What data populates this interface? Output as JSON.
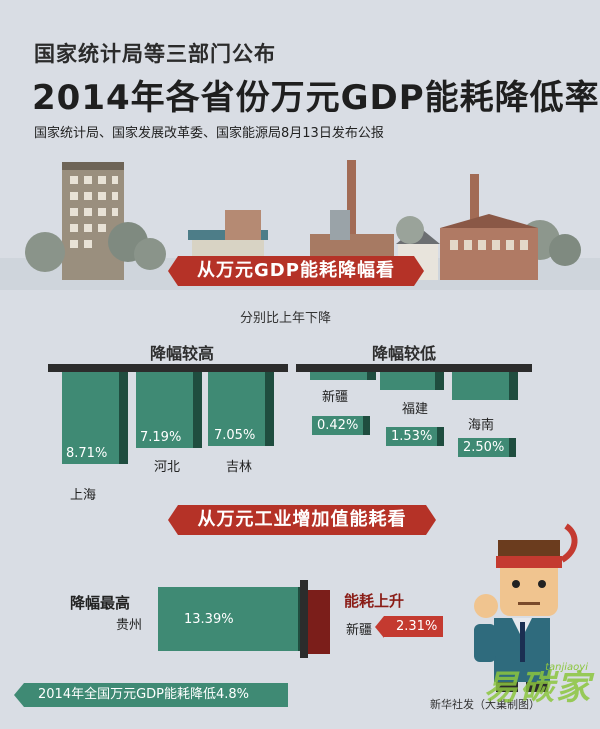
{
  "header": {
    "supertitle": "国家统计局等三部门公布",
    "title": "2014年各省份万元GDP能耗降低率",
    "subtitle": "国家统计局、国家发展改革委、国家能源局8月13日发布公报"
  },
  "section1": {
    "banner": "从万元GDP能耗降幅看",
    "note": "分别比上年下降",
    "high": {
      "label": "降幅较高",
      "items": [
        {
          "province": "上海",
          "value": "8.71%"
        },
        {
          "province": "河北",
          "value": "7.19%"
        },
        {
          "province": "吉林",
          "value": "7.05%"
        }
      ]
    },
    "low": {
      "label": "降幅较低",
      "items": [
        {
          "province": "新疆",
          "value": "0.42%"
        },
        {
          "province": "福建",
          "value": "1.53%"
        },
        {
          "province": "海南",
          "value": "2.50%"
        }
      ]
    }
  },
  "section2": {
    "banner": "从万元工业增加值能耗看",
    "highest": {
      "label": "降幅最高",
      "province": "贵州",
      "value": "13.39%"
    },
    "rise": {
      "label": "能耗上升",
      "province": "新疆",
      "value": "2.31%"
    }
  },
  "footer": {
    "national": "2014年全国万元GDP能耗降低4.8%",
    "credit": "新华社发（大巢制图）",
    "watermark": "易碳家",
    "watermark_small": "tanjiaoyi"
  },
  "colors": {
    "background": "#d9dde4",
    "teal": "#3f8a74",
    "teal_dark": "#1f4d3f",
    "red": "#b53227",
    "red_dark": "#7b1e1a"
  }
}
